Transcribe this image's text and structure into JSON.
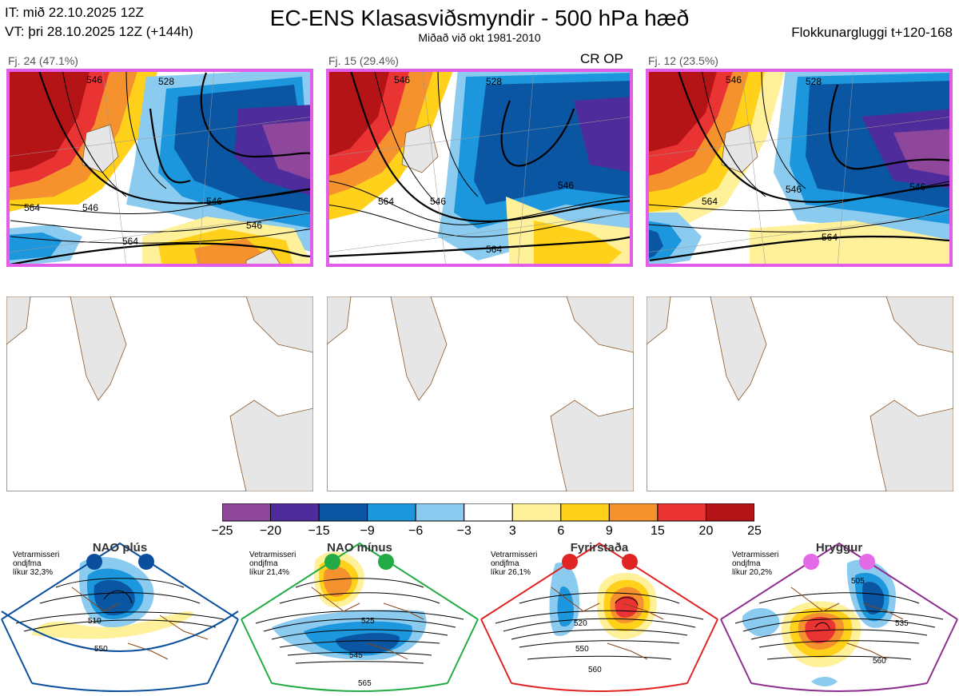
{
  "header": {
    "it_line": "IT: mið 22.10.2025 12Z",
    "vt_line": "VT: þri 28.10.2025 12Z  (+144h)",
    "title": "EC-ENS Klasasviðsmyndir - 500 hPa hæð",
    "subtitle": "Miðað við okt 1981-2010",
    "window": "Flokkunargluggi t+120-168"
  },
  "clusters": [
    {
      "label": "Fj. 24 (47.1%)",
      "contours": [
        "546",
        "546",
        "564",
        "564",
        "546",
        "546",
        "528"
      ],
      "cr_op": ""
    },
    {
      "label": "Fj. 15 (29.4%)",
      "contours": [
        "546",
        "546",
        "564",
        "564",
        "528",
        "546"
      ],
      "cr_op": "CR OP"
    },
    {
      "label": "Fj. 12 (23.5%)",
      "contours": [
        "546",
        "546",
        "564",
        "564",
        "528",
        "546"
      ],
      "cr_op": ""
    }
  ],
  "colorbar": {
    "ticks": [
      "−25",
      "−20",
      "−15",
      "−9",
      "−6",
      "−3",
      "3",
      "6",
      "9",
      "15",
      "20",
      "25"
    ],
    "colors": [
      "#8f479b",
      "#4f2c9b",
      "#0a56a2",
      "#1c96dc",
      "#8acbef",
      "#ffffff",
      "#fff09a",
      "#ffd11a",
      "#f6922d",
      "#ea3333",
      "#b51417"
    ]
  },
  "regimes": [
    {
      "name": "NAO plús",
      "info": [
        "Vetrarmisseri",
        "ondjfma",
        "líkur 32,3%"
      ],
      "contours": [
        "510",
        "550"
      ],
      "color": "#0a4f9d"
    },
    {
      "name": "NAO mínus",
      "info": [
        "Vetrarmisseri",
        "ondjfma",
        "líkur 21,4%"
      ],
      "contours": [
        "525",
        "545",
        "565"
      ],
      "color": "#22aa44"
    },
    {
      "name": "Fyrirstaða",
      "info": [
        "Vetrarmisseri",
        "ondjfma",
        "líkur 26,1%"
      ],
      "contours": [
        "520",
        "550",
        "560"
      ],
      "color": "#e02424"
    },
    {
      "name": "Hryggur",
      "info": [
        "Vetrarmisseri",
        "ondjfma",
        "líkur 20,2%"
      ],
      "contours": [
        "505",
        "535",
        "560"
      ],
      "color": "#e46ae8"
    }
  ],
  "chart_data": {
    "type": "heatmap",
    "title": "EC-ENS Klasasviðsmyndir - 500 hPa hæð",
    "variable": "500 hPa height anomaly (dam)",
    "colorbar_bounds": [
      -25,
      -20,
      -15,
      -9,
      -6,
      -3,
      3,
      6,
      9,
      15,
      20,
      25
    ],
    "clusters": [
      {
        "name": "Fj. 24",
        "members": 24,
        "probability": 47.1
      },
      {
        "name": "Fj. 15",
        "members": 15,
        "probability": 29.4
      },
      {
        "name": "Fj. 12",
        "members": 12,
        "probability": 23.5
      }
    ],
    "regimes": [
      {
        "name": "NAO plús",
        "probability": 32.3
      },
      {
        "name": "NAO mínus",
        "probability": 21.4
      },
      {
        "name": "Fyrirstaða",
        "probability": 26.1
      },
      {
        "name": "Hryggur",
        "probability": 20.2
      }
    ]
  }
}
